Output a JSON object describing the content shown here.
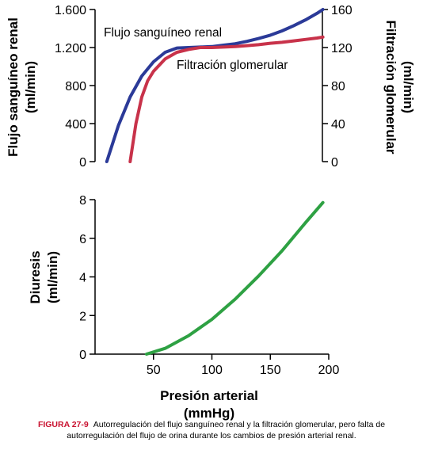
{
  "chart_data": [
    {
      "type": "line",
      "yaxis_left": {
        "label_lines": [
          "Flujo sanguíneo renal",
          "(ml/min)"
        ],
        "ylim": [
          0,
          1600
        ],
        "ticks": [
          0,
          400,
          800,
          1200,
          1600
        ],
        "tick_labels": [
          "0",
          "400",
          "800",
          "1.200",
          "1.600"
        ]
      },
      "yaxis_right": {
        "label_lines": [
          "Filtración glomerular",
          "(ml/min)"
        ],
        "ylim": [
          0,
          160
        ],
        "ticks": [
          0,
          40,
          80,
          120,
          160
        ],
        "tick_labels": [
          "0",
          "40",
          "80",
          "120",
          "160"
        ]
      },
      "xlim": [
        0,
        200
      ],
      "series": [
        {
          "name": "Flujo sanguíneo renal",
          "axis": "left",
          "color": "#2b3a98",
          "x": [
            10,
            20,
            30,
            40,
            50,
            60,
            70,
            80,
            90,
            100,
            110,
            120,
            130,
            140,
            150,
            160,
            170,
            180,
            190,
            195
          ],
          "y": [
            0,
            380,
            680,
            900,
            1050,
            1150,
            1195,
            1200,
            1205,
            1210,
            1225,
            1240,
            1265,
            1295,
            1330,
            1375,
            1430,
            1490,
            1560,
            1600
          ]
        },
        {
          "name": "Filtración glomerular",
          "axis": "right",
          "color": "#c8324a",
          "x": [
            30,
            35,
            40,
            45,
            50,
            60,
            70,
            80,
            90,
            100,
            110,
            120,
            130,
            140,
            150,
            160,
            170,
            180,
            190,
            195
          ],
          "y": [
            0,
            40,
            68,
            85,
            95,
            108,
            115,
            118,
            120,
            120,
            120.5,
            121,
            122,
            123,
            124.5,
            125.5,
            127,
            128.5,
            130,
            131
          ]
        }
      ]
    },
    {
      "type": "line",
      "yaxis_left": {
        "label_lines": [
          "Diuresis",
          "(ml/min)"
        ],
        "ylim": [
          0,
          8
        ],
        "ticks": [
          0,
          2,
          4,
          6,
          8
        ],
        "tick_labels": [
          "0",
          "2",
          "4",
          "6",
          "8"
        ]
      },
      "xlim": [
        0,
        200
      ],
      "xticks": [
        50,
        100,
        150,
        200
      ],
      "xtick_labels": [
        "50",
        "100",
        "150",
        "200"
      ],
      "xlabel_lines": [
        "Presión arterial",
        "(mmHg)"
      ],
      "series": [
        {
          "name": "Diuresis",
          "color": "#2ea143",
          "x": [
            44,
            60,
            80,
            100,
            120,
            140,
            160,
            180,
            195
          ],
          "y": [
            0,
            0.3,
            0.95,
            1.8,
            2.85,
            4.05,
            5.35,
            6.8,
            7.85
          ]
        }
      ]
    }
  ],
  "caption": {
    "label": "FIGURA 27-9",
    "line1": "Autorregulación del flujo sanguíneo renal y la filtración glomerular, pero falta de",
    "line2": "autorregulación del flujo de orina durante los cambios de presión arterial renal."
  }
}
